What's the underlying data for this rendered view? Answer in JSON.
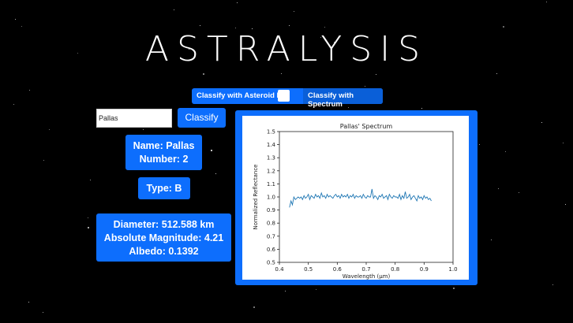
{
  "app": {
    "logo_text": "ASTRALYSIS"
  },
  "mode_toggle": {
    "left_label": "Classify with Asteroid ID",
    "right_label": "Classify with Spectrum"
  },
  "search": {
    "value": "Pallas",
    "button_label": "Classify"
  },
  "info": {
    "name_line": "Name: Pallas",
    "number_line": "Number: 2",
    "type_line": "Type: B",
    "diameter_line": "Diameter: 512.588 km",
    "abs_mag_line": "Absolute Magnitude: 4.21",
    "albedo_line": "Albedo: 0.1392"
  },
  "colors": {
    "accent": "#0d6efd",
    "background": "#000000",
    "line": "#1f77b4"
  },
  "chart_data": {
    "type": "line",
    "title": "Pallas' Spectrum",
    "xlabel": "Wavelength (μm)",
    "ylabel": "Normalized Reflectance",
    "xlim": [
      0.4,
      1.0
    ],
    "ylim": [
      0.5,
      1.5
    ],
    "xticks": [
      "0.4",
      "0.5",
      "0.6",
      "0.7",
      "0.8",
      "0.9",
      "1.0"
    ],
    "yticks": [
      "0.5",
      "0.6",
      "0.7",
      "0.8",
      "0.9",
      "1.0",
      "1.1",
      "1.2",
      "1.3",
      "1.4",
      "1.5"
    ],
    "grid": false,
    "series": [
      {
        "x": [
          0.435,
          0.44,
          0.445,
          0.45,
          0.455,
          0.46,
          0.465,
          0.47,
          0.475,
          0.48,
          0.485,
          0.49,
          0.495,
          0.5,
          0.505,
          0.51,
          0.515,
          0.52,
          0.525,
          0.53,
          0.535,
          0.54,
          0.545,
          0.55,
          0.555,
          0.56,
          0.565,
          0.57,
          0.575,
          0.58,
          0.585,
          0.59,
          0.595,
          0.6,
          0.605,
          0.61,
          0.615,
          0.62,
          0.625,
          0.63,
          0.635,
          0.64,
          0.645,
          0.65,
          0.655,
          0.66,
          0.665,
          0.67,
          0.675,
          0.68,
          0.685,
          0.69,
          0.695,
          0.7,
          0.705,
          0.71,
          0.715,
          0.72,
          0.725,
          0.73,
          0.735,
          0.74,
          0.745,
          0.75,
          0.755,
          0.76,
          0.765,
          0.77,
          0.775,
          0.78,
          0.785,
          0.79,
          0.795,
          0.8,
          0.805,
          0.81,
          0.815,
          0.82,
          0.825,
          0.83,
          0.835,
          0.84,
          0.845,
          0.85,
          0.855,
          0.86,
          0.865,
          0.87,
          0.875,
          0.88,
          0.885,
          0.89,
          0.895,
          0.9,
          0.905,
          0.91,
          0.915,
          0.92,
          0.925
        ],
        "y": [
          0.92,
          0.97,
          0.94,
          1.0,
          0.98,
          0.99,
          1.0,
          0.99,
          1.0,
          0.98,
          1.01,
          0.99,
          1.0,
          1.02,
          0.98,
          1.01,
          1.0,
          0.99,
          1.02,
          1.0,
          1.01,
          0.99,
          1.03,
          1.0,
          1.01,
          0.99,
          1.02,
          1.0,
          1.01,
          1.0,
          0.99,
          1.01,
          1.02,
          1.0,
          1.01,
          0.99,
          1.02,
          1.0,
          1.01,
          1.0,
          1.02,
          0.99,
          1.01,
          1.0,
          1.02,
          0.99,
          1.01,
          1.0,
          1.0,
          1.01,
          0.99,
          1.02,
          1.0,
          0.99,
          1.01,
          1.0,
          1.0,
          1.06,
          0.99,
          1.01,
          1.0,
          0.98,
          1.01,
          1.0,
          1.02,
          0.99,
          1.0,
          1.01,
          0.98,
          1.02,
          1.0,
          0.99,
          1.01,
          1.0,
          1.0,
          0.99,
          1.02,
          0.98,
          1.01,
          0.99,
          1.04,
          0.99,
          1.0,
          1.02,
          0.98,
          1.0,
          1.01,
          0.99,
          0.97,
          1.01,
          0.99,
          1.0,
          0.98,
          1.01,
          0.99,
          1.0,
          0.98,
          0.99,
          0.97
        ]
      }
    ]
  }
}
